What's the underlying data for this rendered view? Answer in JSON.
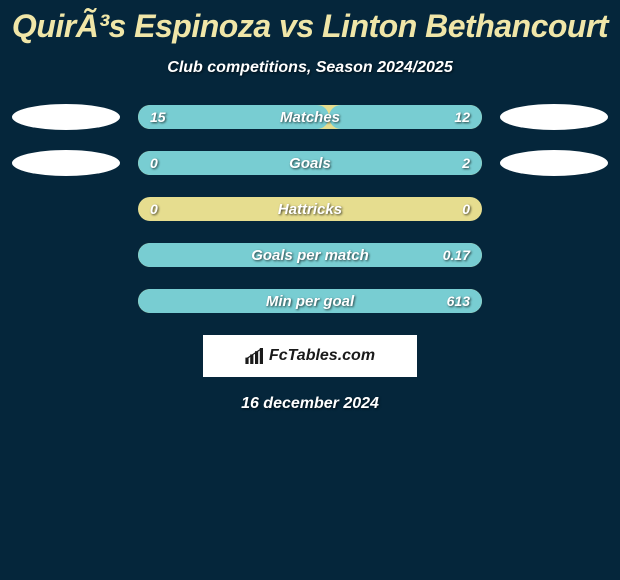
{
  "background_color": "#05263b",
  "text_color": "#ffffff",
  "title": "QuirÃ³s Espinoza vs Linton Bethancourt",
  "title_color": "#f0e6a8",
  "subtitle": "Club competitions, Season 2024/2025",
  "bar_track_color": "#e6dd8f",
  "fill_color_left": "#78cdd2",
  "fill_color_right": "#78cdd2",
  "stats": [
    {
      "label": "Matches",
      "left_value": "15",
      "right_value": "12",
      "left_pct": 55.6,
      "right_pct": 44.4,
      "show_left_ellipse": true,
      "show_right_ellipse": true
    },
    {
      "label": "Goals",
      "left_value": "0",
      "right_value": "2",
      "left_pct": 0,
      "right_pct": 100,
      "show_left_ellipse": true,
      "show_right_ellipse": true
    },
    {
      "label": "Hattricks",
      "left_value": "0",
      "right_value": "0",
      "left_pct": 0,
      "right_pct": 0,
      "show_left_ellipse": false,
      "show_right_ellipse": false
    },
    {
      "label": "Goals per match",
      "left_value": "",
      "right_value": "0.17",
      "left_pct": 0,
      "right_pct": 100,
      "show_left_ellipse": false,
      "show_right_ellipse": false
    },
    {
      "label": "Min per goal",
      "left_value": "",
      "right_value": "613",
      "left_pct": 0,
      "right_pct": 100,
      "show_left_ellipse": false,
      "show_right_ellipse": false
    }
  ],
  "brand_text": "FcTables.com",
  "date_text": "16 december 2024"
}
